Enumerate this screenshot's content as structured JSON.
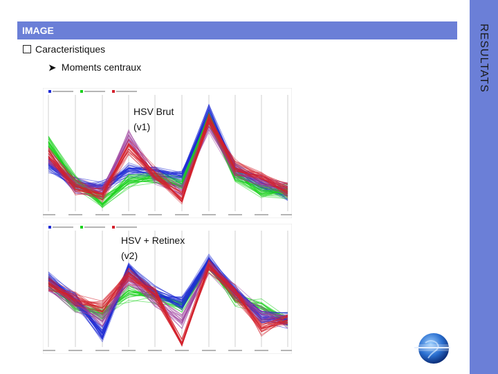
{
  "header": {
    "title": "IMAGE"
  },
  "side": {
    "label": "RESULTATS"
  },
  "bullets": [
    {
      "text": "Caracteristiques"
    },
    {
      "text": "Moments centraux"
    }
  ],
  "plots": [
    {
      "label_line1": "HSV  Brut",
      "label_line2": "(v1)"
    },
    {
      "label_line1": "HSV + Retinex",
      "label_line2": "(v2)"
    }
  ],
  "colors": {
    "accent": "#6b7fd7",
    "series_blue": "#1f2bd6",
    "series_green": "#19d21c",
    "series_red": "#d4202c",
    "series_purple": "#9a3a9a"
  }
}
